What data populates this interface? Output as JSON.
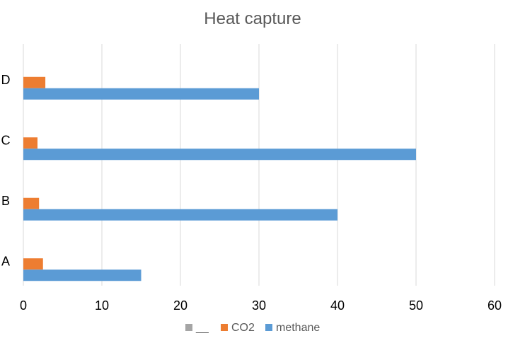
{
  "chart_data": {
    "type": "bar",
    "orientation": "horizontal",
    "title": "Heat capture",
    "xlabel": "",
    "ylabel": "",
    "categories": [
      "A",
      "B",
      "C",
      "D"
    ],
    "series": [
      {
        "name": "__",
        "values": [
          0,
          0,
          0,
          0
        ],
        "color": "#a5a5a5"
      },
      {
        "name": "CO2",
        "values": [
          2.5,
          2,
          1.8,
          2.8
        ],
        "color": "#ed7d31"
      },
      {
        "name": "methane",
        "values": [
          15,
          40,
          50,
          30
        ],
        "color": "#5b9bd5"
      }
    ],
    "xlim": [
      0,
      60
    ],
    "x_ticks": [
      "0",
      "10",
      "20",
      "30",
      "40",
      "50",
      "60"
    ],
    "grid": "vertical",
    "legend_position": "bottom"
  }
}
